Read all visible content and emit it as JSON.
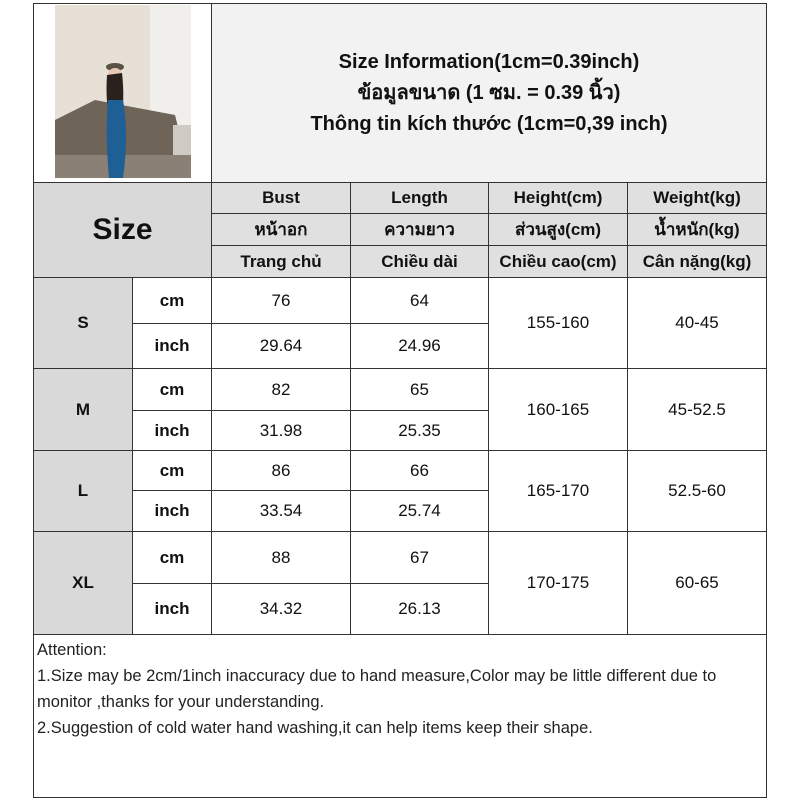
{
  "title": {
    "line1": "Size Information(1cm=0.39inch)",
    "line2": "ข้อมูลขนาด (1 ซม. = 0.39 นิ้ว)",
    "line3": "Thông tin kích thước (1cm=0,39 inch)"
  },
  "header": {
    "size": "Size",
    "columns": [
      {
        "en": "Bust",
        "th": "หน้าอก",
        "vi": "Trang chủ"
      },
      {
        "en": "Length",
        "th": "ความยาว",
        "vi": "Chiều dài"
      },
      {
        "en": "Height(cm)",
        "th": "ส่วนสูง(cm)",
        "vi": "Chiều cao(cm)"
      },
      {
        "en": "Weight(kg)",
        "th": "น้ำหนัก(kg)",
        "vi": "Cân nặng(kg)"
      }
    ]
  },
  "units": {
    "cm": "cm",
    "inch": "inch"
  },
  "rows": [
    {
      "size": "S",
      "bust_cm": "76",
      "length_cm": "64",
      "bust_in": "29.64",
      "length_in": "24.96",
      "height": "155-160",
      "weight": "40-45"
    },
    {
      "size": "M",
      "bust_cm": "82",
      "length_cm": "65",
      "bust_in": "31.98",
      "length_in": "25.35",
      "height": "160-165",
      "weight": "45-52.5"
    },
    {
      "size": "L",
      "bust_cm": "86",
      "length_cm": "66",
      "bust_in": "33.54",
      "length_in": "25.74",
      "height": "165-170",
      "weight": "52.5-60"
    },
    {
      "size": "XL",
      "bust_cm": "88",
      "length_cm": "67",
      "bust_in": "34.32",
      "length_in": "26.13",
      "height": "170-175",
      "weight": "60-65"
    }
  ],
  "attention": {
    "heading": "Attention:",
    "note1": "1.Size may be 2cm/1inch inaccuracy due to hand measure,Color may be little different due to monitor ,thanks for your understanding.",
    "note2": "2.Suggestion of cold water hand washing,it can help items keep their shape."
  }
}
